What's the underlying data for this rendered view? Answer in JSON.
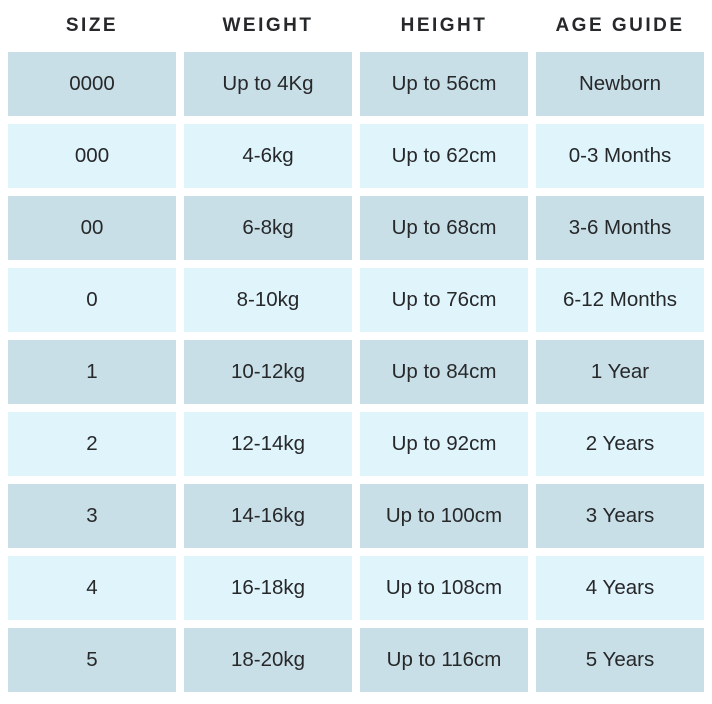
{
  "table": {
    "title": "size-chart",
    "colors": {
      "row_dark": "#c9dfe7",
      "row_light": "#e0f4fb",
      "text": "#26282a",
      "background": "#ffffff"
    },
    "columns": [
      {
        "label": "SIZE"
      },
      {
        "label": "WEIGHT"
      },
      {
        "label": "HEIGHT"
      },
      {
        "label": "AGE GUIDE"
      }
    ],
    "rows": [
      [
        "0000",
        "Up to 4Kg",
        "Up to 56cm",
        "Newborn"
      ],
      [
        "000",
        "4-6kg",
        "Up to 62cm",
        "0-3 Months"
      ],
      [
        "00",
        "6-8kg",
        "Up to 68cm",
        "3-6 Months"
      ],
      [
        "0",
        "8-10kg",
        "Up to 76cm",
        "6-12 Months"
      ],
      [
        "1",
        "10-12kg",
        "Up to 84cm",
        "1 Year"
      ],
      [
        "2",
        "12-14kg",
        "Up to 92cm",
        "2 Years"
      ],
      [
        "3",
        "14-16kg",
        "Up to 100cm",
        "3 Years"
      ],
      [
        "4",
        "16-18kg",
        "Up to 108cm",
        "4 Years"
      ],
      [
        "5",
        "18-20kg",
        "Up to 116cm",
        "5 Years"
      ]
    ]
  }
}
